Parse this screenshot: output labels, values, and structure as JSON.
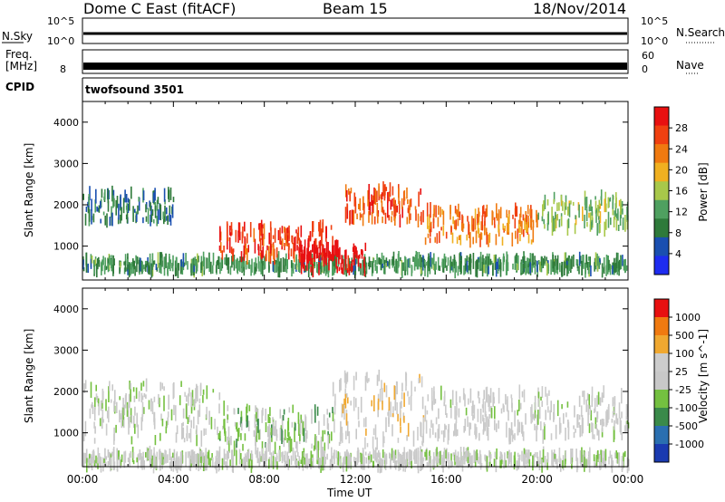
{
  "header": {
    "title": "Dome C East (fitACF)",
    "beam": "Beam 15",
    "date": "18/Nov/2014"
  },
  "top_panels": {
    "nsky_label": "N.Sky",
    "nsky_top": "10^5",
    "nsky_bottom": "10^0",
    "nsearch_label": "N.Search",
    "nsearch_top": "10^5",
    "nsearch_bottom": "10^0",
    "freq_label": "Freq.",
    "freq_unit": "[MHz]",
    "freq_value": "8",
    "nave_top": "60",
    "nave_bottom": "0",
    "nave_label": "Nave",
    "cpid_label": "CPID",
    "cpid_value": "twofsound 3501"
  },
  "colors": {
    "power": [
      "#1e2cf0",
      "#1a4fb0",
      "#2e7a3a",
      "#4fa060",
      "#a8c84a",
      "#f0b020",
      "#f07a10",
      "#f04010",
      "#e81010"
    ],
    "velocity": [
      "#e81010",
      "#f07a10",
      "#f0a830",
      "#cccccc",
      "#c8c8c8",
      "#74c040",
      "#3a8a4a",
      "#2a6fb0",
      "#1a3ab0"
    ]
  },
  "chart_data": [
    {
      "type": "heatmap",
      "name": "power",
      "xlabel": "",
      "ylabel": "Slant Range [km]",
      "xlim": [
        0,
        24
      ],
      "ylim": [
        180,
        4500
      ],
      "yticks": [
        "1000",
        "2000",
        "3000",
        "4000"
      ],
      "colorbar": {
        "label": "Power [dB]",
        "ticks": [
          "4",
          "8",
          "12",
          "16",
          "20",
          "24",
          "28"
        ],
        "range": [
          0,
          30
        ]
      },
      "regions": [
        {
          "x": [
            0,
            24
          ],
          "y": [
            400,
            700
          ],
          "value": 10
        },
        {
          "x": [
            0,
            4
          ],
          "y": [
            1600,
            2300
          ],
          "value": 8
        },
        {
          "x": [
            6,
            11
          ],
          "y": [
            700,
            1500
          ],
          "value": 26
        },
        {
          "x": [
            9.5,
            12.5
          ],
          "y": [
            400,
            1000
          ],
          "value": 30
        },
        {
          "x": [
            11.5,
            15
          ],
          "y": [
            1600,
            2400
          ],
          "value": 24
        },
        {
          "x": [
            15,
            20
          ],
          "y": [
            1100,
            1900
          ],
          "value": 22
        },
        {
          "x": [
            20,
            24
          ],
          "y": [
            1400,
            2200
          ],
          "value": 14
        }
      ]
    },
    {
      "type": "heatmap",
      "name": "velocity",
      "xlabel": "Time UT",
      "ylabel": "Slant Range [km]",
      "xlim": [
        0,
        24
      ],
      "ylim": [
        180,
        4500
      ],
      "xticks": [
        "00:00",
        "04:00",
        "08:00",
        "12:00",
        "16:00",
        "20:00",
        "00:00"
      ],
      "yticks": [
        "1000",
        "2000",
        "3000",
        "4000"
      ],
      "colorbar": {
        "label": "Velocity [m s^-1]",
        "ticks": [
          "1000",
          "500",
          "100",
          "25",
          "-25",
          "-100",
          "-500",
          "-1000"
        ],
        "range": [
          -1200,
          1200
        ]
      },
      "regions": [
        {
          "x": [
            0,
            6
          ],
          "y": [
            800,
            2200
          ],
          "value": 0
        },
        {
          "x": [
            6,
            11
          ],
          "y": [
            600,
            1600
          ],
          "value": -150
        },
        {
          "x": [
            11,
            15
          ],
          "y": [
            700,
            2400
          ],
          "value": 200
        },
        {
          "x": [
            15,
            24
          ],
          "y": [
            900,
            2000
          ],
          "value": 100
        },
        {
          "x": [
            0,
            24
          ],
          "y": [
            200,
            500
          ],
          "value": 40
        }
      ]
    }
  ]
}
